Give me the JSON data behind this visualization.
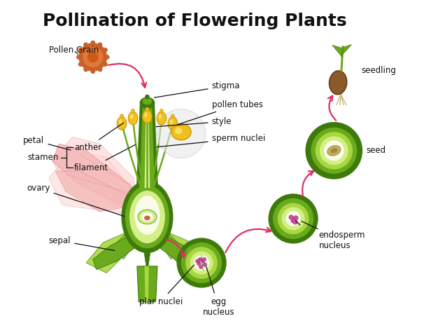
{
  "title": "Pollination of Flowering Plants",
  "title_fontsize": 18,
  "title_fontweight": "bold",
  "bg_color": "#ffffff",
  "labels": {
    "pollen_grain": "Pollen Grain",
    "stigma": "stigma",
    "pollen_tubes": "pollen tubes",
    "style": "style",
    "sperm_nuclei": "sperm nuclei",
    "stamen": "stamen",
    "anther": "anther",
    "filament": "filament",
    "petal": "petal",
    "ovary": "ovary",
    "sepal": "sepal",
    "plar_nuclei": "plar nuclei",
    "egg_nucleus": "egg\nnucleus",
    "endosperm_nucleus": "endosperm\nnucleus",
    "seed": "seed",
    "seedling": "seedling"
  },
  "colors": {
    "dark_green": "#3d7a0a",
    "mid_green": "#6aaa1c",
    "light_green": "#a8d840",
    "pale_green": "#d4ee88",
    "yellow_green": "#e8f0a0",
    "white_cream": "#f8fce8",
    "petal_pink": "#f4b8b8",
    "petal_mid": "#eea0a0",
    "petal_light": "#fdd8d8",
    "anther_yellow": "#f0c020",
    "anther_orange": "#d09800",
    "pollen_brown": "#c8622a",
    "pollen_mid": "#e07838",
    "ovule_cream": "#f8eecc",
    "ovule_pink": "#d06050",
    "seedling_brown": "#8b5a2b",
    "seedling_root": "#c8b878",
    "pink_nuc": "#d050a0",
    "pink_nuc_edge": "#a02880",
    "arrow_pink": "#e03060",
    "line_black": "#111111",
    "seed_tan": "#c8b060",
    "seed_dark_tan": "#a08840",
    "grey_circle": "#e8e8e8"
  }
}
